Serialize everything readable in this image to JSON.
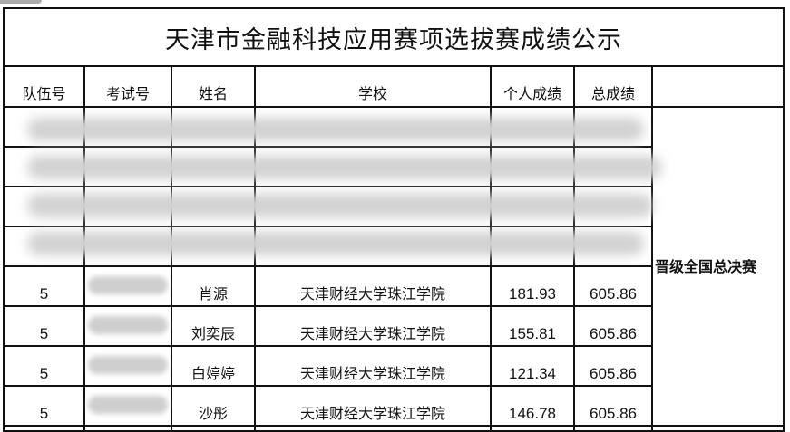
{
  "title": "天津市金融科技应用赛项选拔赛成绩公示",
  "headers": [
    "队伍号",
    "考试号",
    "姓名",
    "学校",
    "个人成绩",
    "总成绩",
    ""
  ],
  "advancement_label": "晋级全国总决赛",
  "redacted_row_count": 4,
  "rows": [
    {
      "team": "5",
      "exam_no": "",
      "name": "肖源",
      "school": "天津财经大学珠江学院",
      "score": "181.93",
      "total": "605.86"
    },
    {
      "team": "5",
      "exam_no": "",
      "name": "刘奕辰",
      "school": "天津财经大学珠江学院",
      "score": "155.81",
      "total": "605.86"
    },
    {
      "team": "5",
      "exam_no": "",
      "name": "白婷婷",
      "school": "天津财经大学珠江学院",
      "score": "121.34",
      "total": "605.86"
    },
    {
      "team": "5",
      "exam_no": "",
      "name": "沙彤",
      "school": "天津财经大学珠江学院",
      "score": "146.78",
      "total": "605.86"
    }
  ]
}
